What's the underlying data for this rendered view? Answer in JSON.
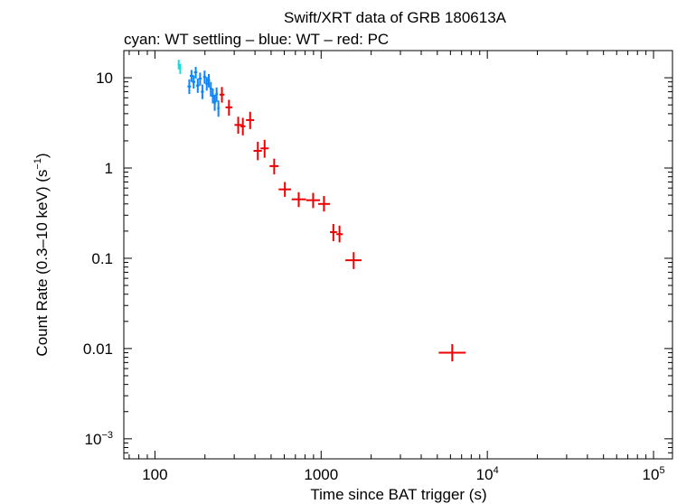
{
  "chart_data": {
    "type": "scatter",
    "title": "Swift/XRT data of GRB 180613A",
    "subtitle": "cyan: WT settling – blue: WT – red: PC",
    "xlabel": "Time since BAT trigger (s)",
    "ylabel": "Count Rate (0.3–10 keV) (s",
    "ylabel_sup": "−1",
    "ylabel_end": ")",
    "xscale": "log",
    "yscale": "log",
    "xlim": [
      65,
      130000
    ],
    "ylim": [
      0.0006,
      20
    ],
    "x_ticks": [
      {
        "value": 100,
        "label": "100",
        "sup": ""
      },
      {
        "value": 1000,
        "label": "1000",
        "sup": ""
      },
      {
        "value": 10000,
        "label": "10",
        "sup": "4"
      },
      {
        "value": 100000,
        "label": "10",
        "sup": "5"
      }
    ],
    "y_ticks": [
      {
        "value": 10,
        "label": "10",
        "sup": ""
      },
      {
        "value": 1,
        "label": "1",
        "sup": ""
      },
      {
        "value": 0.1,
        "label": "0.1",
        "sup": ""
      },
      {
        "value": 0.01,
        "label": "0.01",
        "sup": ""
      },
      {
        "value": 0.001,
        "label": "10",
        "sup": "−3"
      }
    ],
    "series": [
      {
        "name": "WT settling",
        "color": "#00e5e5",
        "points": [
          {
            "x": 139,
            "y": 14.0,
            "xlo": 137,
            "xhi": 141,
            "ylo": 12.4,
            "yhi": 15.8
          },
          {
            "x": 142,
            "y": 12.6,
            "xlo": 140,
            "xhi": 144,
            "ylo": 11.0,
            "yhi": 14.2
          }
        ]
      },
      {
        "name": "WT",
        "color": "#0a84ff",
        "points": [
          {
            "x": 161,
            "y": 8.0,
            "xlo": 157,
            "xhi": 165,
            "ylo": 6.6,
            "yhi": 9.6
          },
          {
            "x": 166,
            "y": 10.5,
            "xlo": 162,
            "xhi": 170,
            "ylo": 9.0,
            "yhi": 12.2
          },
          {
            "x": 171,
            "y": 9.0,
            "xlo": 167,
            "xhi": 175,
            "ylo": 7.6,
            "yhi": 10.6
          },
          {
            "x": 176,
            "y": 11.5,
            "xlo": 172,
            "xhi": 180,
            "ylo": 9.8,
            "yhi": 13.2
          },
          {
            "x": 181,
            "y": 8.2,
            "xlo": 177,
            "xhi": 185,
            "ylo": 6.8,
            "yhi": 9.8
          },
          {
            "x": 187,
            "y": 9.8,
            "xlo": 183,
            "xhi": 191,
            "ylo": 8.2,
            "yhi": 11.4
          },
          {
            "x": 193,
            "y": 7.0,
            "xlo": 189,
            "xhi": 197,
            "ylo": 5.8,
            "yhi": 8.4
          },
          {
            "x": 199,
            "y": 10.2,
            "xlo": 195,
            "xhi": 203,
            "ylo": 8.6,
            "yhi": 12.0
          },
          {
            "x": 205,
            "y": 8.6,
            "xlo": 201,
            "xhi": 209,
            "ylo": 7.2,
            "yhi": 10.2
          },
          {
            "x": 211,
            "y": 9.4,
            "xlo": 207,
            "xhi": 215,
            "ylo": 7.8,
            "yhi": 11.0
          },
          {
            "x": 217,
            "y": 7.6,
            "xlo": 213,
            "xhi": 221,
            "ylo": 6.2,
            "yhi": 9.0
          },
          {
            "x": 223,
            "y": 6.3,
            "xlo": 219,
            "xhi": 227,
            "ylo": 5.2,
            "yhi": 7.6
          },
          {
            "x": 229,
            "y": 5.3,
            "xlo": 225,
            "xhi": 233,
            "ylo": 4.3,
            "yhi": 6.5
          },
          {
            "x": 235,
            "y": 6.6,
            "xlo": 231,
            "xhi": 239,
            "ylo": 5.4,
            "yhi": 7.8
          },
          {
            "x": 241,
            "y": 4.6,
            "xlo": 237,
            "xhi": 245,
            "ylo": 3.7,
            "yhi": 5.6
          }
        ]
      },
      {
        "name": "PC",
        "color": "#ee0000",
        "points": [
          {
            "x": 253,
            "y": 6.5,
            "xlo": 245,
            "xhi": 262,
            "ylo": 5.3,
            "yhi": 7.9
          },
          {
            "x": 279,
            "y": 4.7,
            "xlo": 266,
            "xhi": 292,
            "ylo": 3.8,
            "yhi": 5.7
          },
          {
            "x": 317,
            "y": 3.0,
            "xlo": 301,
            "xhi": 333,
            "ylo": 2.4,
            "yhi": 3.7
          },
          {
            "x": 338,
            "y": 2.9,
            "xlo": 327,
            "xhi": 350,
            "ylo": 2.3,
            "yhi": 3.6
          },
          {
            "x": 374,
            "y": 3.4,
            "xlo": 353,
            "xhi": 395,
            "ylo": 2.7,
            "yhi": 4.2
          },
          {
            "x": 416,
            "y": 1.55,
            "xlo": 392,
            "xhi": 440,
            "ylo": 1.22,
            "yhi": 1.95
          },
          {
            "x": 457,
            "y": 1.65,
            "xlo": 432,
            "xhi": 483,
            "ylo": 1.3,
            "yhi": 2.05
          },
          {
            "x": 522,
            "y": 1.05,
            "xlo": 490,
            "xhi": 555,
            "ylo": 0.85,
            "yhi": 1.27
          },
          {
            "x": 605,
            "y": 0.58,
            "xlo": 555,
            "xhi": 660,
            "ylo": 0.48,
            "yhi": 0.7
          },
          {
            "x": 733,
            "y": 0.45,
            "xlo": 665,
            "xhi": 810,
            "ylo": 0.37,
            "yhi": 0.54
          },
          {
            "x": 895,
            "y": 0.44,
            "xlo": 812,
            "xhi": 985,
            "ylo": 0.36,
            "yhi": 0.53
          },
          {
            "x": 1040,
            "y": 0.4,
            "xlo": 960,
            "xhi": 1130,
            "ylo": 0.33,
            "yhi": 0.49
          },
          {
            "x": 1185,
            "y": 0.195,
            "xlo": 1130,
            "xhi": 1245,
            "ylo": 0.155,
            "yhi": 0.24
          },
          {
            "x": 1290,
            "y": 0.185,
            "xlo": 1235,
            "xhi": 1350,
            "ylo": 0.15,
            "yhi": 0.23
          },
          {
            "x": 1570,
            "y": 0.095,
            "xlo": 1400,
            "xhi": 1750,
            "ylo": 0.076,
            "yhi": 0.117
          },
          {
            "x": 6150,
            "y": 0.009,
            "xlo": 5100,
            "xhi": 7400,
            "ylo": 0.0072,
            "yhi": 0.0112
          }
        ]
      }
    ]
  }
}
